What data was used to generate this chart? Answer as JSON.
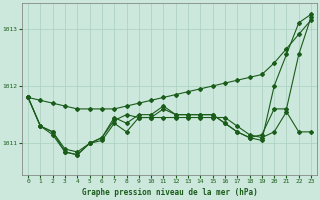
{
  "title": "Graphe pression niveau de la mer (hPa)",
  "bg_color": "#cce8dc",
  "line_color": "#1a5c1a",
  "grid_color": "#aacfbf",
  "xlim": [
    -0.5,
    23.5
  ],
  "ylim": [
    1010.45,
    1013.45
  ],
  "yticks": [
    1011,
    1012,
    1013
  ],
  "xticks": [
    0,
    1,
    2,
    3,
    4,
    5,
    6,
    7,
    8,
    9,
    10,
    11,
    12,
    13,
    14,
    15,
    16,
    17,
    18,
    19,
    20,
    21,
    22,
    23
  ],
  "series": [
    [
      1011.8,
      1011.3,
      1011.2,
      1010.85,
      1010.8,
      1011.0,
      1011.1,
      1011.45,
      1011.35,
      1011.5,
      1011.5,
      1011.65,
      1011.5,
      1011.5,
      1011.5,
      1011.5,
      1011.35,
      1011.2,
      1011.1,
      1011.15,
      1011.6,
      1011.6,
      1012.55,
      1013.2
    ],
    [
      1011.8,
      1011.3,
      1011.15,
      1010.85,
      1010.8,
      1011.0,
      1011.05,
      1011.35,
      1011.2,
      1011.45,
      1011.45,
      1011.6,
      1011.5,
      1011.5,
      1011.5,
      1011.5,
      1011.35,
      1011.2,
      1011.1,
      1011.05,
      1012.0,
      1012.55,
      1013.1,
      1013.25
    ],
    [
      1011.8,
      1011.3,
      1011.2,
      1010.9,
      1010.85,
      1011.0,
      1011.1,
      1011.4,
      1011.5,
      1011.45,
      1011.45,
      1011.45,
      1011.45,
      1011.45,
      1011.45,
      1011.45,
      1011.45,
      1011.3,
      1011.15,
      1011.1,
      1011.2,
      1011.55,
      1011.2,
      1011.2
    ],
    [
      1011.8,
      1011.75,
      1011.7,
      1011.65,
      1011.6,
      1011.6,
      1011.6,
      1011.6,
      1011.65,
      1011.7,
      1011.75,
      1011.8,
      1011.85,
      1011.9,
      1011.95,
      1012.0,
      1012.05,
      1012.1,
      1012.15,
      1012.2,
      1012.4,
      1012.65,
      1012.9,
      1013.15
    ]
  ]
}
